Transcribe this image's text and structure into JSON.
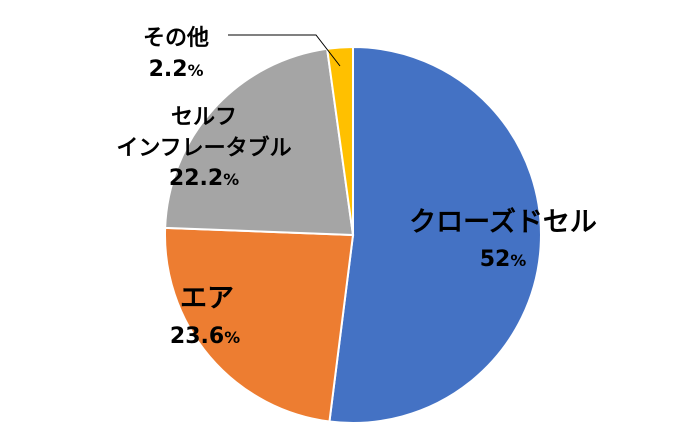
{
  "chart_data": {
    "type": "pie",
    "start": "top, clockwise",
    "slices": [
      {
        "name": "クローズドセル",
        "value": 52,
        "label_value": "52",
        "color": "#4472C4"
      },
      {
        "name": "エア",
        "value": 23.6,
        "label_value": "23.6",
        "color": "#ED7D31"
      },
      {
        "name": "セルフ\nインフレータブル",
        "name_lines": [
          "セルフ",
          "インフレータブル"
        ],
        "value": 22.2,
        "label_value": "22.2",
        "color": "#A5A5A5"
      },
      {
        "name": "その他",
        "value": 2.2,
        "label_value": "2.2",
        "color": "#FFC000"
      }
    ],
    "percent_sign": "%"
  }
}
